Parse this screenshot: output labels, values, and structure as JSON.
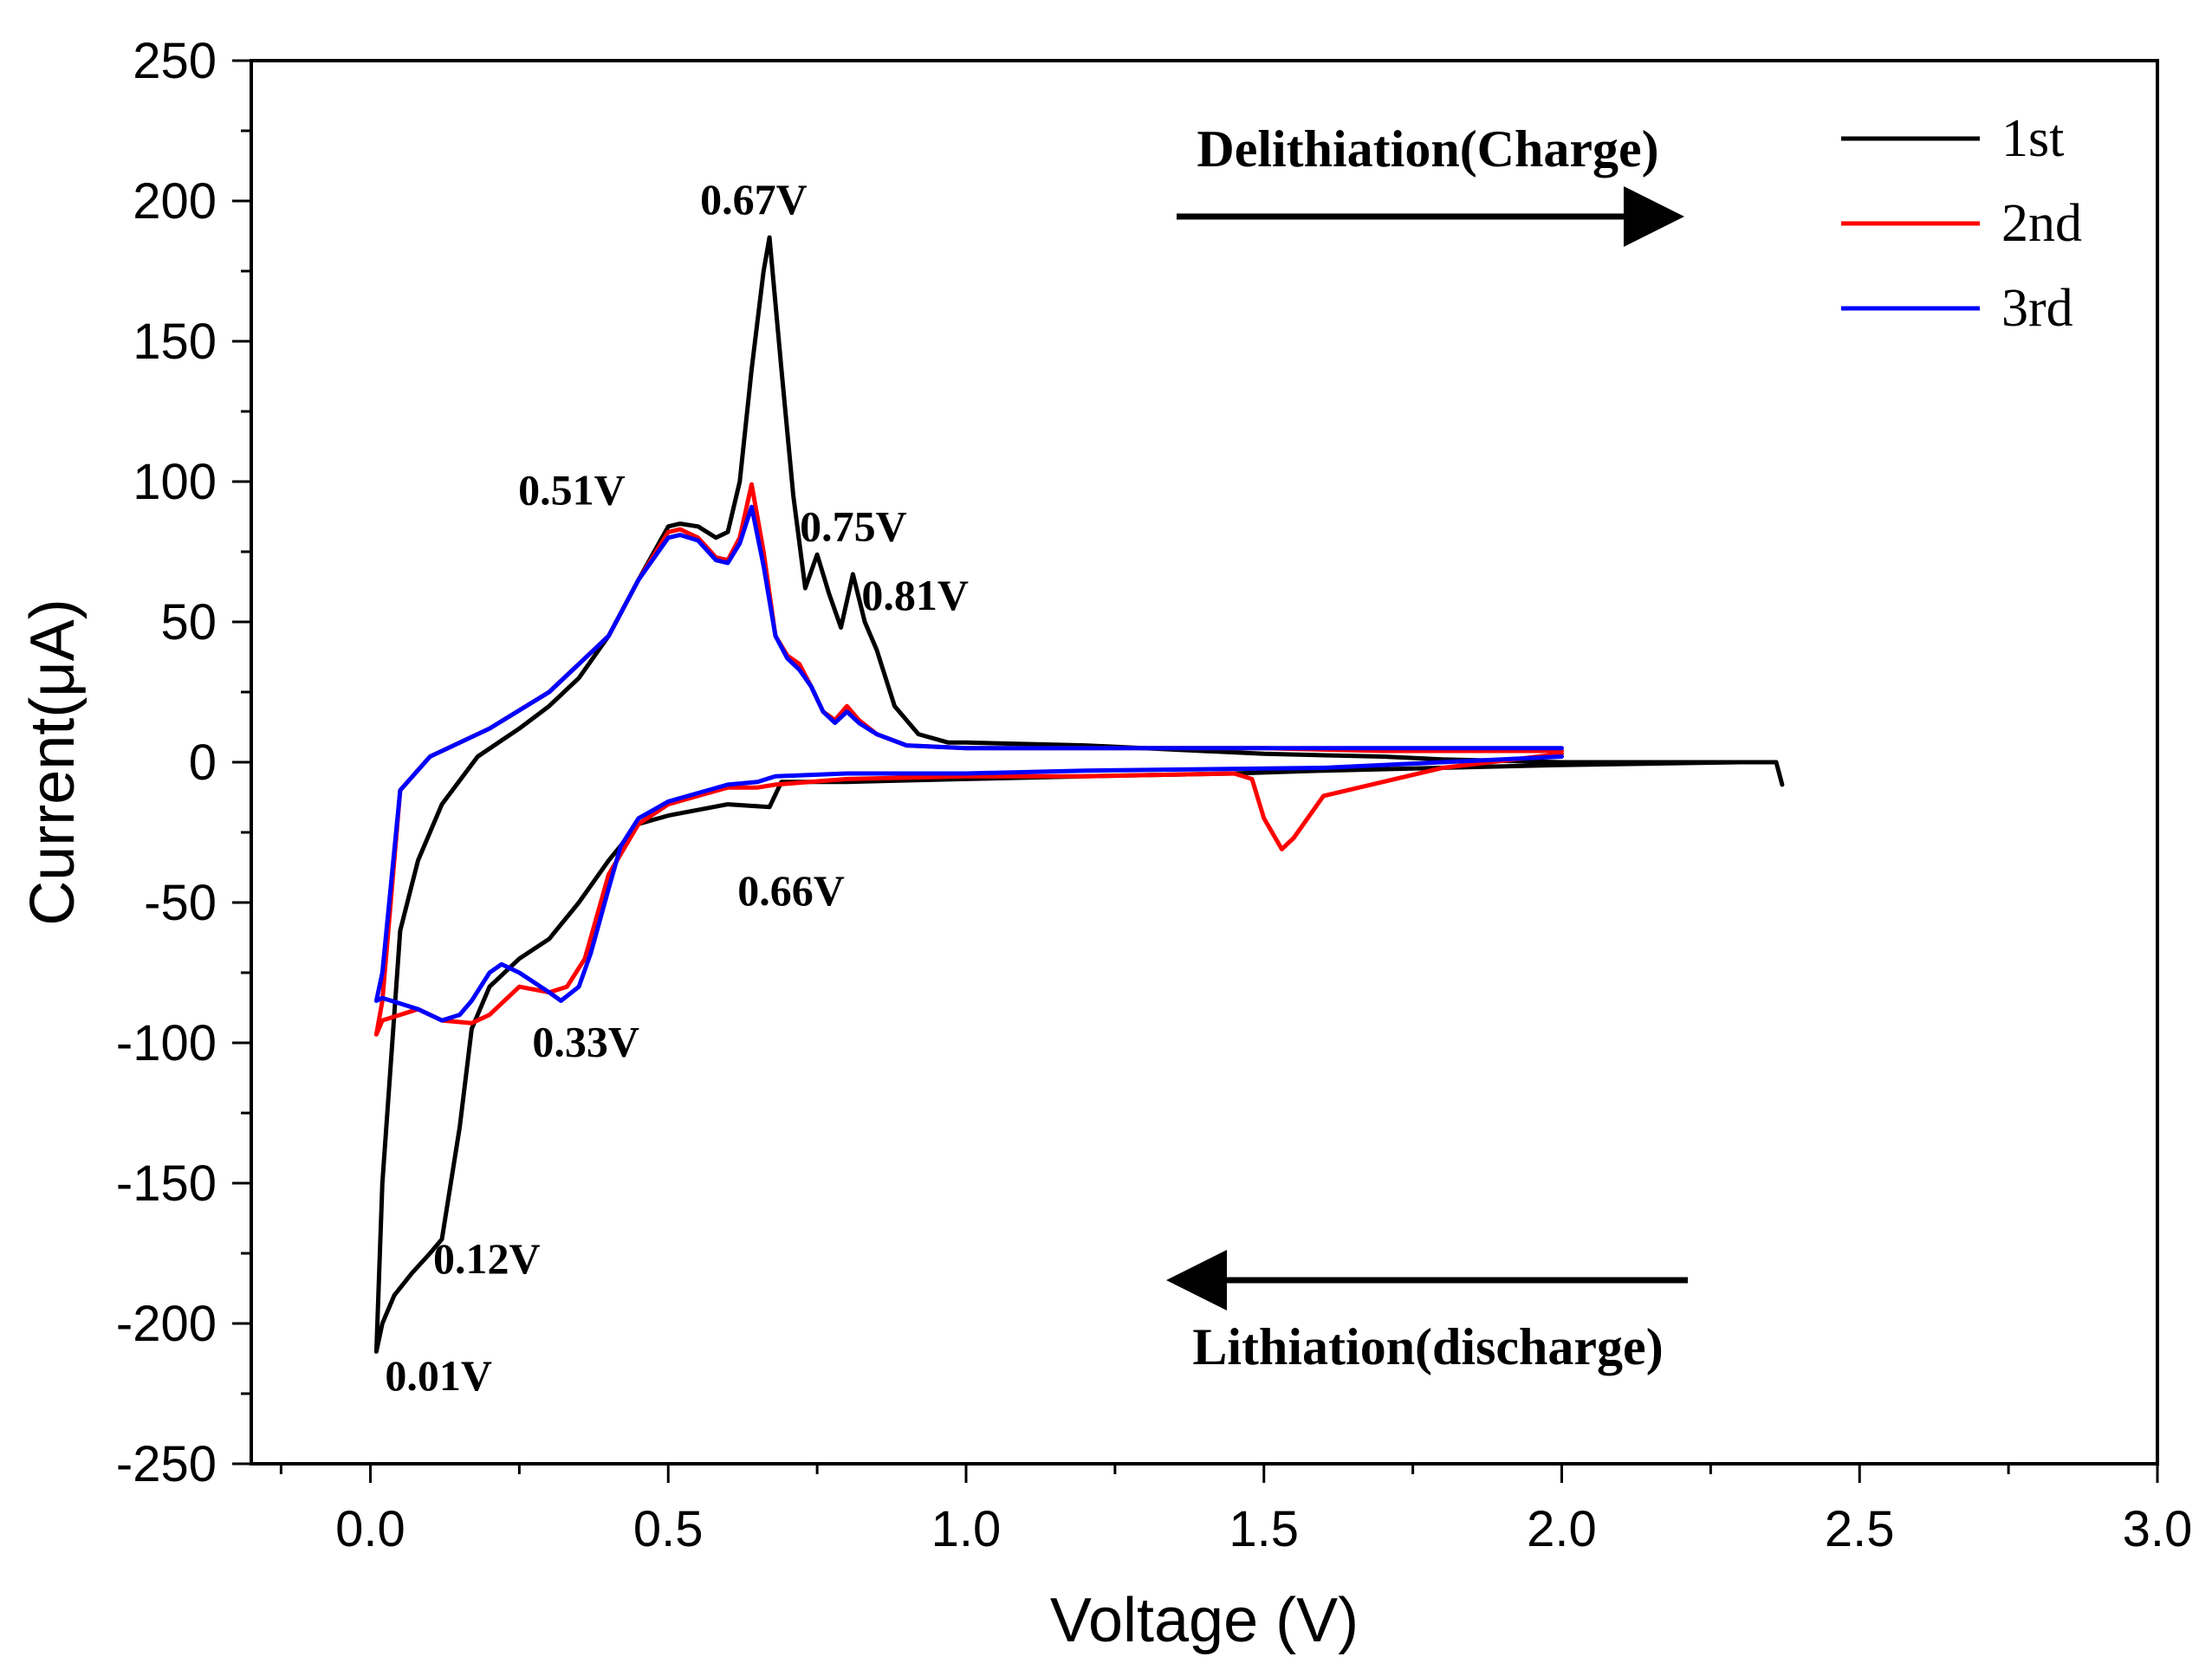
{
  "chart_data": {
    "type": "line",
    "title": "",
    "xlabel": "Voltage (V)",
    "ylabel": "Current(μA)",
    "xlim": [
      -0.2,
      3.0
    ],
    "ylim": [
      -250,
      250
    ],
    "xticks": [
      0.0,
      0.5,
      1.0,
      1.5,
      2.0,
      2.5,
      3.0
    ],
    "xtick_labels": [
      "0.0",
      "0.5",
      "1.0",
      "1.5",
      "2.0",
      "2.5",
      "3.0"
    ],
    "yticks": [
      -250,
      -200,
      -150,
      -100,
      -50,
      0,
      50,
      100,
      150,
      200,
      250
    ],
    "ytick_labels": [
      "-250",
      "-200",
      "-150",
      "-100",
      "-50",
      "0",
      "50",
      "100",
      "150",
      "200",
      "250"
    ],
    "grid": false,
    "legend_position": "top-right",
    "series": [
      {
        "name": "1st",
        "color": "#000000",
        "x": [
          2.37,
          2.36,
          2.3,
          2.0,
          1.6,
          1.45,
          1.2,
          1.0,
          0.8,
          0.69,
          0.67,
          0.6,
          0.5,
          0.45,
          0.4,
          0.35,
          0.3,
          0.25,
          0.2,
          0.17,
          0.15,
          0.12,
          0.1,
          0.07,
          0.04,
          0.02,
          0.01,
          0.02,
          0.05,
          0.08,
          0.12,
          0.18,
          0.25,
          0.3,
          0.35,
          0.4,
          0.45,
          0.5,
          0.52,
          0.55,
          0.58,
          0.6,
          0.62,
          0.64,
          0.66,
          0.67,
          0.69,
          0.71,
          0.73,
          0.75,
          0.77,
          0.79,
          0.81,
          0.83,
          0.85,
          0.88,
          0.92,
          0.97,
          1.0,
          1.2,
          1.5,
          1.7,
          1.8,
          2.0,
          2.2,
          2.3,
          2.36
        ],
        "y": [
          -8,
          0,
          0,
          -1,
          -3,
          -4,
          -5,
          -6,
          -7,
          -7,
          -16,
          -15,
          -19,
          -22,
          -35,
          -50,
          -63,
          -70,
          -80,
          -95,
          -130,
          -170,
          -175,
          -182,
          -190,
          -200,
          -210,
          -150,
          -60,
          -35,
          -15,
          2,
          12,
          20,
          30,
          45,
          65,
          84,
          85,
          84,
          80,
          82,
          100,
          140,
          175,
          187,
          140,
          95,
          62,
          74,
          60,
          48,
          67,
          50,
          40,
          20,
          10,
          7,
          7,
          6,
          3,
          2,
          1,
          0,
          0,
          0,
          0
        ]
      },
      {
        "name": "2nd",
        "color": "#ff0000",
        "x": [
          2.0,
          1.8,
          1.6,
          1.55,
          1.53,
          1.5,
          1.48,
          1.45,
          1.2,
          1.0,
          0.8,
          0.68,
          0.65,
          0.6,
          0.55,
          0.5,
          0.45,
          0.4,
          0.36,
          0.33,
          0.3,
          0.25,
          0.2,
          0.17,
          0.12,
          0.08,
          0.05,
          0.02,
          0.01,
          0.02,
          0.05,
          0.1,
          0.2,
          0.3,
          0.4,
          0.45,
          0.5,
          0.52,
          0.55,
          0.58,
          0.6,
          0.62,
          0.64,
          0.66,
          0.68,
          0.7,
          0.72,
          0.74,
          0.76,
          0.78,
          0.8,
          0.82,
          0.85,
          0.9,
          1.0,
          1.2,
          1.5,
          1.7,
          2.0
        ],
        "y": [
          3,
          -2,
          -12,
          -27,
          -31,
          -20,
          -6,
          -4,
          -5,
          -5,
          -6,
          -8,
          -9,
          -9,
          -12,
          -15,
          -22,
          -40,
          -70,
          -80,
          -82,
          -80,
          -90,
          -93,
          -92,
          -88,
          -90,
          -92,
          -97,
          -85,
          -10,
          2,
          12,
          25,
          45,
          65,
          82,
          83,
          80,
          73,
          72,
          80,
          99,
          75,
          45,
          38,
          35,
          27,
          18,
          15,
          20,
          15,
          10,
          6,
          5,
          5,
          5,
          4,
          4
        ]
      },
      {
        "name": "3rd",
        "color": "#0000ff",
        "x": [
          2.0,
          1.6,
          1.2,
          1.0,
          0.8,
          0.68,
          0.65,
          0.6,
          0.55,
          0.5,
          0.45,
          0.42,
          0.4,
          0.37,
          0.35,
          0.32,
          0.3,
          0.25,
          0.22,
          0.2,
          0.17,
          0.15,
          0.12,
          0.08,
          0.05,
          0.02,
          0.01,
          0.02,
          0.05,
          0.1,
          0.2,
          0.3,
          0.4,
          0.45,
          0.5,
          0.52,
          0.55,
          0.58,
          0.6,
          0.62,
          0.64,
          0.66,
          0.68,
          0.7,
          0.72,
          0.74,
          0.76,
          0.78,
          0.8,
          0.82,
          0.85,
          0.9,
          1.0,
          1.2,
          1.5,
          1.7,
          2.0
        ],
        "y": [
          2,
          -2,
          -3,
          -4,
          -4,
          -5,
          -7,
          -8,
          -11,
          -14,
          -20,
          -30,
          -45,
          -68,
          -80,
          -85,
          -82,
          -75,
          -72,
          -75,
          -85,
          -90,
          -92,
          -88,
          -86,
          -84,
          -85,
          -75,
          -10,
          2,
          12,
          25,
          45,
          65,
          80,
          81,
          79,
          72,
          71,
          78,
          91,
          70,
          45,
          37,
          33,
          27,
          18,
          14,
          18,
          14,
          10,
          6,
          5,
          5,
          5,
          5,
          5
        ]
      }
    ],
    "annotations": [
      {
        "text": "0.67V",
        "x": 0.67,
        "y": 200
      },
      {
        "text": "0.51V",
        "x": 0.51,
        "y": 98
      },
      {
        "text": "0.75V",
        "x": 0.75,
        "y": 85
      },
      {
        "text": "0.81V",
        "x": 0.81,
        "y": 62
      },
      {
        "text": "0.66V",
        "x": 0.66,
        "y": -37
      },
      {
        "text": "0.33V",
        "x": 0.33,
        "y": -97
      },
      {
        "text": "0.12V",
        "x": 0.12,
        "y": -176
      },
      {
        "text": "0.01V",
        "x": 0.01,
        "y": -216
      }
    ],
    "direction_labels": [
      {
        "text": "Delithiation(Charge)",
        "direction": "right"
      },
      {
        "text": "Lithiation(discharge)",
        "direction": "left"
      }
    ]
  }
}
